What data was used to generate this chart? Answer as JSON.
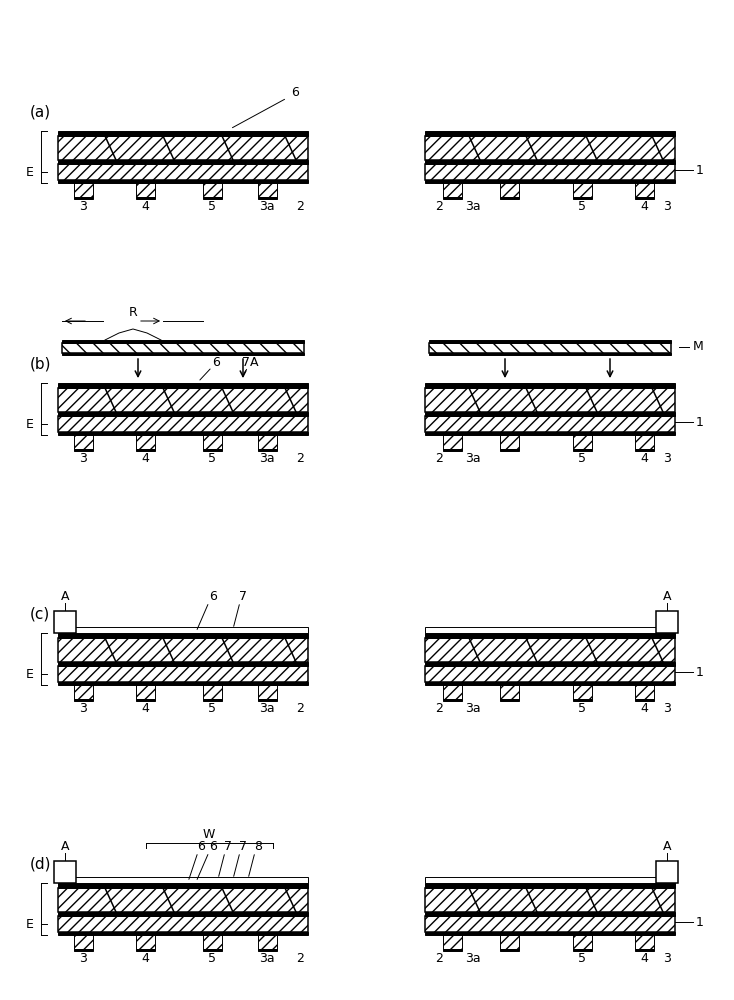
{
  "panels": [
    "(a)",
    "(b)",
    "(c)",
    "(d)"
  ],
  "bg_color": "#ffffff",
  "line_color": "#000000",
  "fig_width": 7.34,
  "fig_height": 10.0,
  "dpi": 100,
  "lw_thin": 0.7,
  "lw_med": 1.1,
  "lw_thick": 1.8
}
